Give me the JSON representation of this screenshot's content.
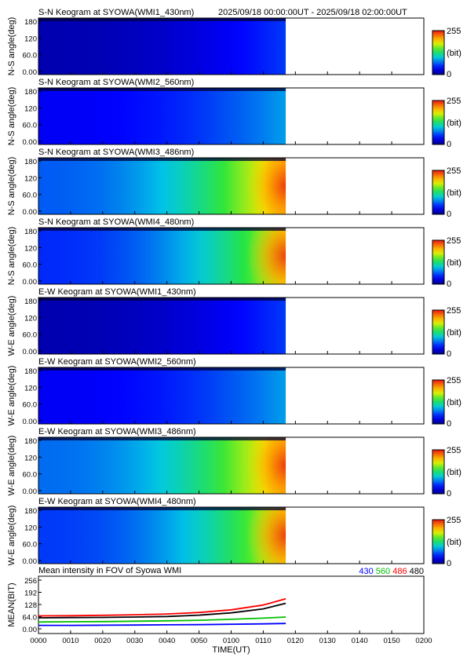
{
  "header": {
    "time_range": "2025/09/18 00:00:00UT - 2025/09/18 02:00:00UT"
  },
  "colorbar": {
    "max_label": "255",
    "unit_label": "(bit)",
    "min_label": "0"
  },
  "colors": {
    "series_430": "#0000ff",
    "series_560": "#00c000",
    "series_486": "#ff0000",
    "series_480": "#000000"
  },
  "chart_data": [
    {
      "type": "heatmap",
      "title": "S-N Keogram at SYOWA(WMI1_430nm)",
      "ylabel": "N-S angle(deg)",
      "yticks": [
        "180",
        "120",
        "60.0",
        "0.00"
      ],
      "ylim": [
        0,
        180
      ],
      "xlim": [
        "0000",
        "0200"
      ],
      "data_end": "0117",
      "intensity_start": 12,
      "intensity_end": 55,
      "bright_core": false
    },
    {
      "type": "heatmap",
      "title": "S-N Keogram at SYOWA(WMI2_560nm)",
      "ylabel": "N-S angle(deg)",
      "yticks": [
        "180",
        "120",
        "60.0",
        "0.00"
      ],
      "ylim": [
        0,
        180
      ],
      "xlim": [
        "0000",
        "0200"
      ],
      "data_end": "0117",
      "intensity_start": 35,
      "intensity_end": 85,
      "bright_core": false
    },
    {
      "type": "heatmap",
      "title": "S-N Keogram at SYOWA(WMI3_486nm)",
      "ylabel": "N-S angle(deg)",
      "yticks": [
        "180",
        "120",
        "60.0",
        "0.00"
      ],
      "ylim": [
        0,
        180
      ],
      "xlim": [
        "0000",
        "0200"
      ],
      "data_end": "0117",
      "intensity_start": 65,
      "intensity_end": 215,
      "bright_core": true
    },
    {
      "type": "heatmap",
      "title": "S-N Keogram at SYOWA(WMI4_480nm)",
      "ylabel": "N-S angle(deg)",
      "yticks": [
        "180",
        "120",
        "60.0",
        "0.00"
      ],
      "ylim": [
        0,
        180
      ],
      "xlim": [
        "0000",
        "0200"
      ],
      "data_end": "0117",
      "intensity_start": 50,
      "intensity_end": 185,
      "bright_core": true
    },
    {
      "type": "heatmap",
      "title": "E-W Keogram at SYOWA(WMI1_430nm)",
      "ylabel": "W-E angle(deg)",
      "yticks": [
        "180",
        "120",
        "60.0",
        "0.00"
      ],
      "ylim": [
        0,
        180
      ],
      "xlim": [
        "0000",
        "0200"
      ],
      "data_end": "0117",
      "intensity_start": 12,
      "intensity_end": 55,
      "bright_core": false
    },
    {
      "type": "heatmap",
      "title": "E-W Keogram at SYOWA(WMI2_560nm)",
      "ylabel": "W-E angle(deg)",
      "yticks": [
        "180",
        "120",
        "60.0",
        "0.00"
      ],
      "ylim": [
        0,
        180
      ],
      "xlim": [
        "0000",
        "0200"
      ],
      "data_end": "0117",
      "intensity_start": 35,
      "intensity_end": 85,
      "bright_core": false
    },
    {
      "type": "heatmap",
      "title": "E-W Keogram at SYOWA(WMI3_486nm)",
      "ylabel": "W-E angle(deg)",
      "yticks": [
        "180",
        "120",
        "60.0",
        "0.00"
      ],
      "ylim": [
        0,
        180
      ],
      "xlim": [
        "0000",
        "0200"
      ],
      "data_end": "0117",
      "intensity_start": 70,
      "intensity_end": 215,
      "bright_core": true
    },
    {
      "type": "heatmap",
      "title": "E-W Keogram at SYOWA(WMI4_480nm)",
      "ylabel": "W-E angle(deg)",
      "yticks": [
        "180",
        "120",
        "60.0",
        "0.00"
      ],
      "ylim": [
        0,
        180
      ],
      "xlim": [
        "0000",
        "0200"
      ],
      "data_end": "0117",
      "intensity_start": 55,
      "intensity_end": 190,
      "bright_core": true
    },
    {
      "type": "line",
      "title": "Mean intensity in FOV of Syowa WMI",
      "xlabel": "TIME(UT)",
      "ylabel": "MEAN(BIT)",
      "ylim": [
        0,
        256
      ],
      "yticks": [
        "256",
        "192",
        "128",
        "64.0",
        "0.00"
      ],
      "xlim": [
        "0000",
        "0200"
      ],
      "xticks": [
        "0000",
        "0010",
        "0020",
        "0030",
        "0040",
        "0050",
        "0100",
        "0110",
        "0120",
        "0130",
        "0140",
        "0150",
        "0200"
      ],
      "legend_position": "top-right",
      "x": [
        "0000",
        "0010",
        "0020",
        "0030",
        "0040",
        "0050",
        "0100",
        "0110",
        "0117"
      ],
      "series": [
        {
          "name": "430",
          "values": [
            18,
            18,
            19,
            20,
            21,
            22,
            24,
            26,
            28
          ]
        },
        {
          "name": "560",
          "values": [
            36,
            37,
            38,
            40,
            42,
            45,
            50,
            56,
            62
          ]
        },
        {
          "name": "486",
          "values": [
            68,
            69,
            71,
            74,
            78,
            86,
            100,
            125,
            158
          ]
        },
        {
          "name": "480",
          "values": [
            58,
            59,
            60,
            62,
            65,
            72,
            84,
            105,
            134
          ]
        }
      ]
    }
  ]
}
